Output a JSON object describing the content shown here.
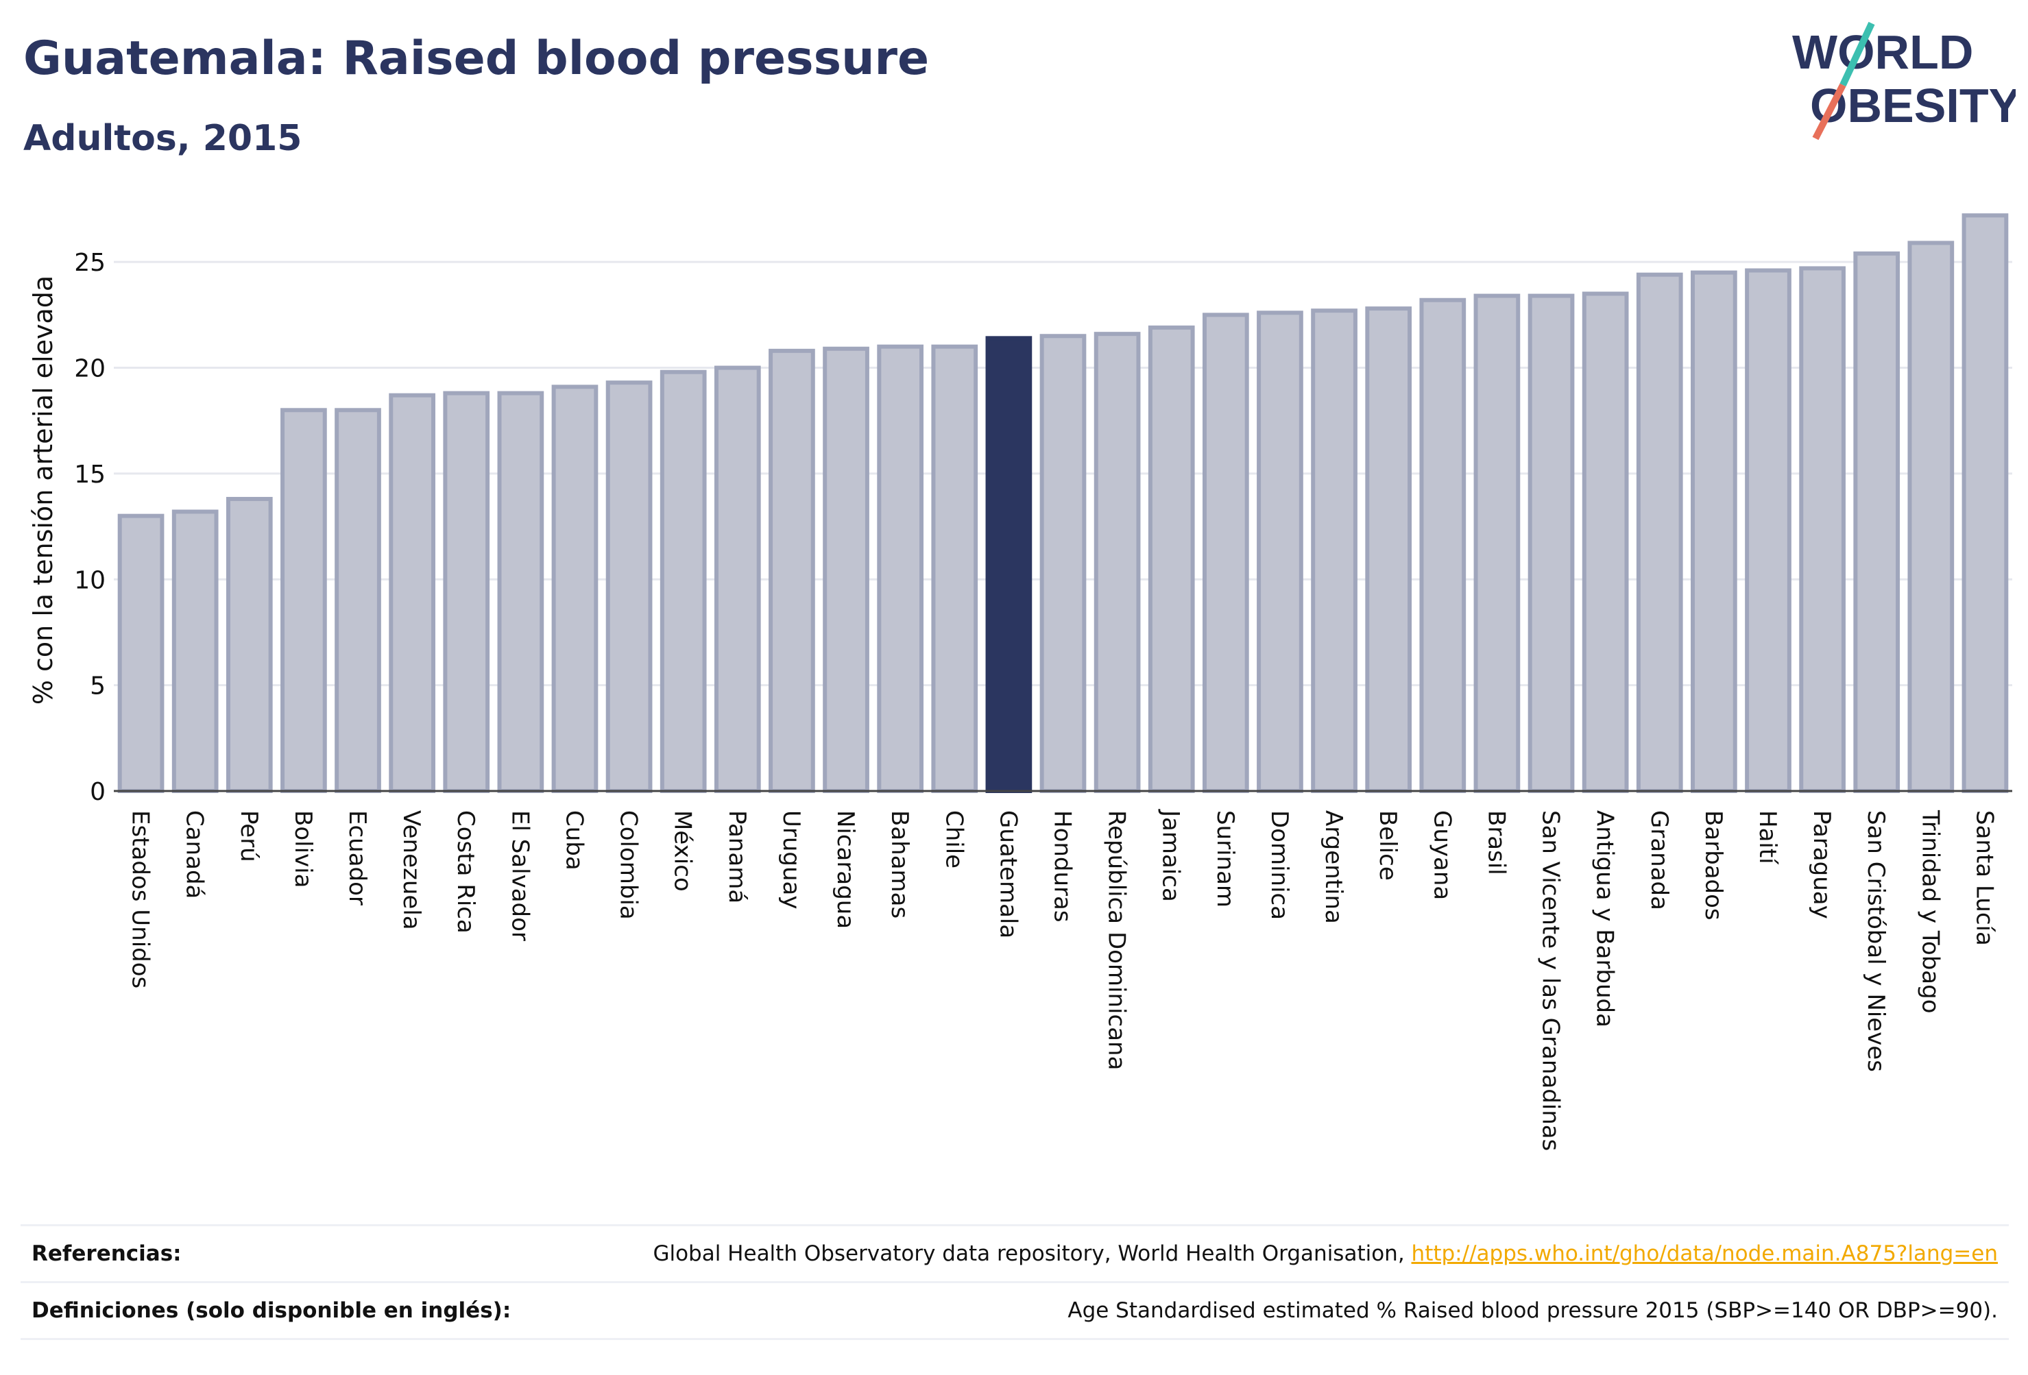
{
  "header": {
    "title": "Guatemala: Raised blood pressure",
    "subtitle": "Adultos, 2015"
  },
  "logo": {
    "line1": "WORLD",
    "line2": "OBESITY",
    "slash_colors": [
      "#3cbfb0",
      "#e8705a"
    ]
  },
  "chart_data": {
    "type": "bar",
    "title": "",
    "xlabel": "",
    "ylabel": "% con la tensión arterial elevada",
    "ylim": [
      0,
      27.5
    ],
    "yticks": [
      0,
      5,
      10,
      15,
      20,
      25
    ],
    "grid": true,
    "highlight": "Guatemala",
    "colors": {
      "bar": "#c0c3d0",
      "bar_border": "#a0a6bc",
      "highlight": "#2b3660",
      "grid": "#e6e8ee",
      "axis_text": "#111111"
    },
    "categories": [
      "Estados Unidos",
      "Canadá",
      "Perú",
      "Bolivia",
      "Ecuador",
      "Venezuela",
      "Costa Rica",
      "El Salvador",
      "Cuba",
      "Colombia",
      "México",
      "Panamá",
      "Uruguay",
      "Nicaragua",
      "Bahamas",
      "Chile",
      "Guatemala",
      "Honduras",
      "República Dominicana",
      "Jamaica",
      "Surinam",
      "Dominica",
      "Argentina",
      "Belice",
      "Guyana",
      "Brasil",
      "San Vicente y las Granadinas",
      "Antigua y Barbuda",
      "Granada",
      "Barbados",
      "Haití",
      "Paraguay",
      "San Cristóbal y Nieves",
      "Trinidad y Tobago",
      "Santa Lucía"
    ],
    "values": [
      13.0,
      13.2,
      13.8,
      18.0,
      18.0,
      18.7,
      18.8,
      18.8,
      19.1,
      19.3,
      19.8,
      20.0,
      20.8,
      20.9,
      21.0,
      21.0,
      21.4,
      21.5,
      21.6,
      21.9,
      22.5,
      22.6,
      22.7,
      22.8,
      23.2,
      23.4,
      23.4,
      23.5,
      24.4,
      24.5,
      24.6,
      24.7,
      25.4,
      25.9,
      27.2
    ]
  },
  "footer": {
    "references_label": "Referencias:",
    "references_text": "Global Health Observatory data repository, World Health Organisation, ",
    "references_link": "http://apps.who.int/gho/data/node.main.A875?lang=en",
    "definitions_label": "Definiciones (solo disponible en inglés):",
    "definitions_text": "Age Standardised estimated % Raised blood pressure 2015 (SBP>=140 OR DBP>=90)."
  }
}
